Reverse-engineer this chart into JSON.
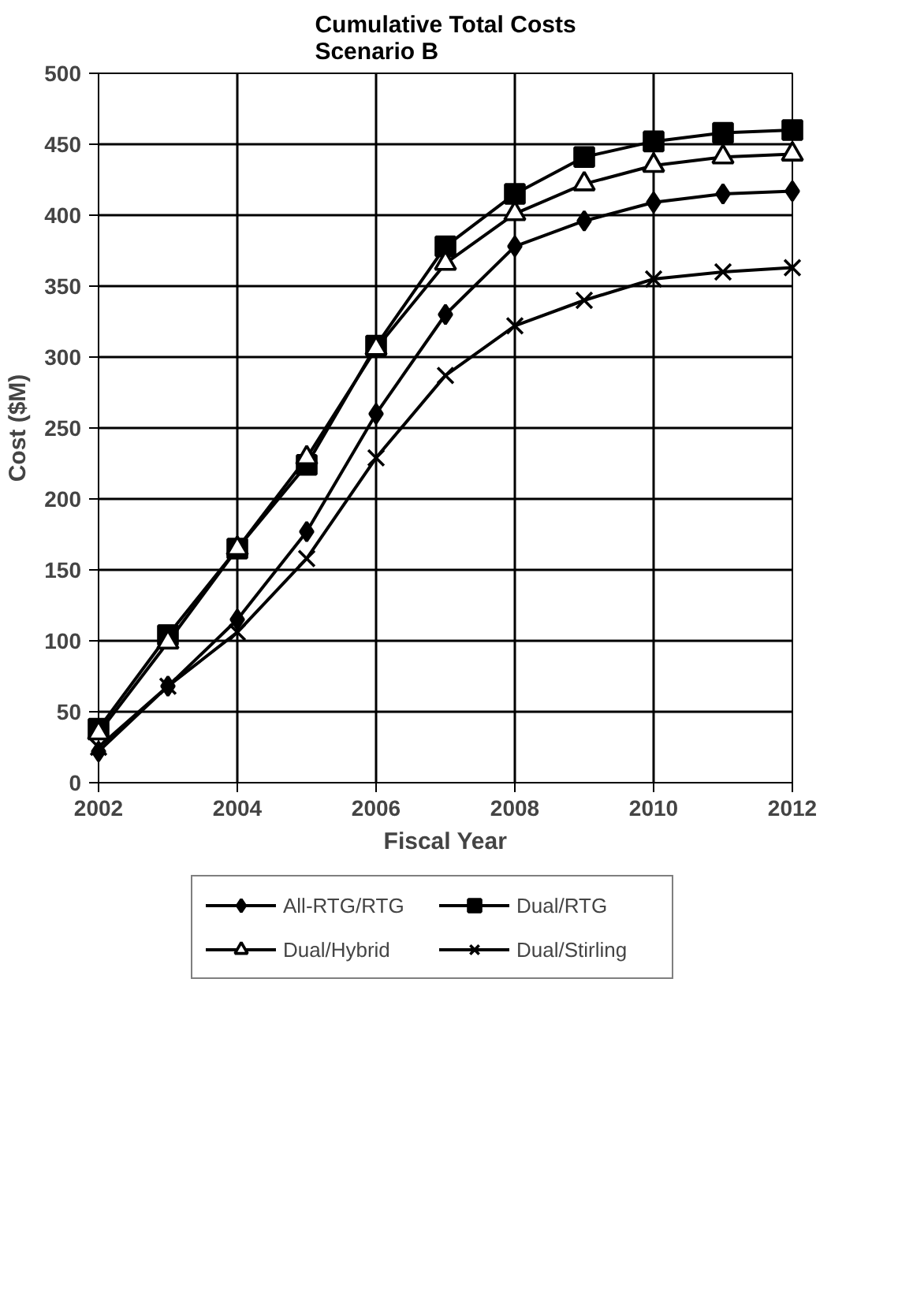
{
  "chart_data": {
    "type": "line",
    "title": "Cumulative Total Costs\nScenario B",
    "xlabel": "Fiscal Year",
    "ylabel": "Cost ($M)",
    "x": [
      2002,
      2003,
      2004,
      2005,
      2006,
      2007,
      2008,
      2009,
      2010,
      2011,
      2012
    ],
    "xlim": [
      2002,
      2012
    ],
    "xticks": [
      2002,
      2004,
      2006,
      2008,
      2010,
      2012
    ],
    "ylim": [
      0,
      500
    ],
    "yticks": [
      0,
      50,
      100,
      150,
      200,
      250,
      300,
      350,
      400,
      450,
      500
    ],
    "grid": true,
    "legend": "bottom",
    "series": [
      {
        "name": "All-RTG/RTG",
        "color": "#000000",
        "marker": "diamond",
        "values": [
          22,
          68,
          115,
          177,
          260,
          330,
          378,
          396,
          409,
          415,
          417
        ]
      },
      {
        "name": "Dual/RTG",
        "color": "#000000",
        "marker": "square",
        "values": [
          38,
          104,
          165,
          224,
          308,
          378,
          415,
          441,
          452,
          458,
          460
        ]
      },
      {
        "name": "Dual/Hybrid",
        "color": "#000000",
        "marker": "triangle",
        "values": [
          35,
          99,
          165,
          229,
          306,
          366,
          401,
          422,
          435,
          441,
          443
        ]
      },
      {
        "name": "Dual/Stirling",
        "color": "#000000",
        "marker": "cross",
        "values": [
          25,
          68,
          106,
          158,
          229,
          287,
          322,
          340,
          355,
          360,
          363
        ]
      }
    ]
  }
}
